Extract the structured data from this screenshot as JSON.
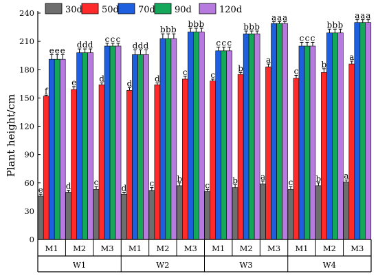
{
  "chart_data": {
    "type": "bar",
    "ylabel": "Plant height/cm",
    "ylim": [
      0,
      240
    ],
    "yticks": [
      0,
      30,
      60,
      90,
      120,
      150,
      180,
      210,
      240
    ],
    "grid": false,
    "legend_position": "top",
    "series": [
      {
        "name": "30d",
        "color": "#6e6e6e",
        "values": [
          46,
          50,
          53,
          48,
          52,
          57,
          51,
          55,
          59,
          53,
          57,
          61
        ],
        "errors": [
          2,
          2,
          3,
          2,
          3,
          3,
          2,
          3,
          3,
          3,
          3,
          2
        ],
        "labels": [
          "e",
          "d",
          "c",
          "d",
          "c",
          "b",
          "c",
          "b",
          "a",
          "c",
          "b",
          "a"
        ]
      },
      {
        "name": "50d",
        "color": "#ff2a2a",
        "values": [
          152,
          159,
          164,
          158,
          164,
          170,
          168,
          175,
          183,
          171,
          177,
          186
        ],
        "errors": [
          1,
          3,
          2,
          3,
          2,
          3,
          2,
          2,
          3,
          3,
          4,
          3
        ],
        "labels": [
          "f",
          "e",
          "d",
          "d",
          "d",
          "c",
          "c",
          "b",
          "a",
          "c",
          "b",
          "a"
        ]
      },
      {
        "name": "70d",
        "color": "#1e5fe0",
        "values": [
          191,
          198,
          205,
          196,
          213,
          220,
          200,
          218,
          229,
          205,
          219,
          230
        ],
        "errors": [
          5,
          4,
          3,
          5,
          5,
          4,
          4,
          3,
          2,
          4,
          4,
          3
        ],
        "labels": [
          "e",
          "d",
          "c",
          "d",
          "b",
          "b",
          "c",
          "b",
          "a",
          "c",
          "b",
          "a"
        ]
      },
      {
        "name": "90d",
        "color": "#15a85a",
        "values": [
          191,
          198,
          205,
          196,
          213,
          220,
          200,
          218,
          229,
          205,
          219,
          230
        ],
        "errors": [
          5,
          4,
          3,
          5,
          5,
          4,
          4,
          3,
          2,
          4,
          4,
          3
        ],
        "labels": [
          "e",
          "d",
          "c",
          "d",
          "b",
          "b",
          "c",
          "b",
          "a",
          "c",
          "b",
          "a"
        ]
      },
      {
        "name": "120d",
        "color": "#b77be0",
        "values": [
          191,
          198,
          205,
          196,
          213,
          220,
          200,
          218,
          229,
          205,
          219,
          230
        ],
        "errors": [
          5,
          4,
          3,
          5,
          5,
          4,
          4,
          3,
          2,
          4,
          4,
          3
        ],
        "labels": [
          "e",
          "d",
          "c",
          "d",
          "b",
          "b",
          "c",
          "b",
          "a",
          "c",
          "b",
          "a"
        ]
      }
    ],
    "categories": [
      "M1",
      "M2",
      "M3",
      "M1",
      "M2",
      "M3",
      "M1",
      "M2",
      "M3",
      "M1",
      "M2",
      "M3"
    ],
    "groups": [
      "W1",
      "W2",
      "W3",
      "W4"
    ]
  }
}
